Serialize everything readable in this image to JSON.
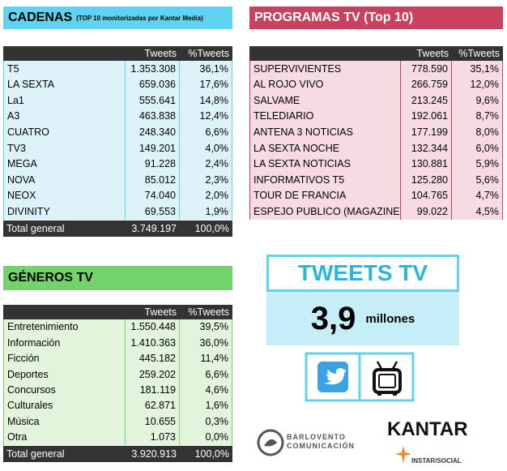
{
  "cadenas": {
    "title": "CADENAS",
    "subtitle": "(TOP 10 monitorizadas por Kantar Media)",
    "columns": [
      "Tweets",
      "%Tweets"
    ],
    "rows": [
      [
        "T5",
        "1.353.308",
        "36,1%"
      ],
      [
        "LA SEXTA",
        "659.036",
        "17,6%"
      ],
      [
        "La1",
        "555.641",
        "14,8%"
      ],
      [
        "A3",
        "463.838",
        "12,4%"
      ],
      [
        "CUATRO",
        "248.340",
        "6,6%"
      ],
      [
        "TV3",
        "149.201",
        "4,0%"
      ],
      [
        "MEGA",
        "91.228",
        "2,4%"
      ],
      [
        "NOVA",
        "85.012",
        "2,3%"
      ],
      [
        "NEOX",
        "74.040",
        "2,0%"
      ],
      [
        "DIVINITY",
        "69.553",
        "1,9%"
      ]
    ],
    "total": [
      "Total general",
      "3.749.197",
      "100,0%"
    ]
  },
  "programas": {
    "title": "PROGRAMAS TV (Top 10)",
    "columns": [
      "Tweets",
      "%Tweets"
    ],
    "rows": [
      [
        "SUPERVIVIENTES",
        "778.590",
        "35,1%"
      ],
      [
        "AL ROJO VIVO",
        "266.759",
        "12,0%"
      ],
      [
        "SALVAME",
        "213.245",
        "9,6%"
      ],
      [
        "TELEDIARIO",
        "192.061",
        "8,7%"
      ],
      [
        "ANTENA 3 NOTICIAS",
        "177.199",
        "8,0%"
      ],
      [
        "LA SEXTA NOCHE",
        "132.344",
        "6,0%"
      ],
      [
        "LA SEXTA NOTICIAS",
        "130.881",
        "5,9%"
      ],
      [
        "INFORMATIVOS T5",
        "125.280",
        "5,6%"
      ],
      [
        "TOUR DE FRANCIA",
        "104.765",
        "4,7%"
      ],
      [
        "ESPEJO PUBLICO (MAGAZINE)",
        "99.022",
        "4,5%"
      ]
    ]
  },
  "generos": {
    "title": "GÉNEROS TV",
    "columns": [
      "Tweets",
      "%Tweets"
    ],
    "rows": [
      [
        "Entretenimiento",
        "1.550.448",
        "39,5%"
      ],
      [
        "Información",
        "1.410.363",
        "36,0%"
      ],
      [
        "Ficción",
        "445.182",
        "11,4%"
      ],
      [
        "Deportes",
        "259.202",
        "6,6%"
      ],
      [
        "Concursos",
        "181.119",
        "4,6%"
      ],
      [
        "Culturales",
        "62.871",
        "1,6%"
      ],
      [
        "Música",
        "10.655",
        "0,3%"
      ],
      [
        "Otra",
        "1.073",
        "0,0%"
      ]
    ],
    "total": [
      "Total general",
      "3.920.913",
      "100,0%"
    ]
  },
  "tweets_tv": {
    "title": "TWEETS TV",
    "value": "3,9",
    "unit": "millones"
  },
  "logos": {
    "barlovento": [
      "BARLOVENTO",
      "COMUNICACIÓN"
    ],
    "kantar": "KANTAR",
    "instar": "INSTAR/SOCIAL"
  }
}
